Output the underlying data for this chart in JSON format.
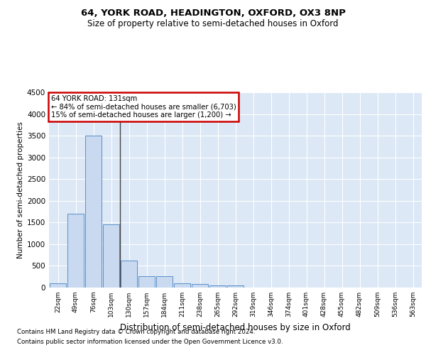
{
  "title1": "64, YORK ROAD, HEADINGTON, OXFORD, OX3 8NP",
  "title2": "Size of property relative to semi-detached houses in Oxford",
  "xlabel": "Distribution of semi-detached houses by size in Oxford",
  "ylabel": "Number of semi-detached properties",
  "footnote1": "Contains HM Land Registry data © Crown copyright and database right 2024.",
  "footnote2": "Contains public sector information licensed under the Open Government Licence v3.0.",
  "categories": [
    "22sqm",
    "49sqm",
    "76sqm",
    "103sqm",
    "130sqm",
    "157sqm",
    "184sqm",
    "211sqm",
    "238sqm",
    "265sqm",
    "292sqm",
    "319sqm",
    "346sqm",
    "374sqm",
    "401sqm",
    "428sqm",
    "455sqm",
    "482sqm",
    "509sqm",
    "536sqm",
    "563sqm"
  ],
  "values": [
    100,
    1700,
    3500,
    1450,
    620,
    270,
    270,
    100,
    80,
    55,
    55,
    0,
    0,
    0,
    0,
    0,
    0,
    0,
    0,
    0,
    0
  ],
  "bar_color": "#c8d9f0",
  "bar_edge_color": "#5b8fc9",
  "highlight_index": 4,
  "highlight_line_color": "#444444",
  "annotation_text_line1": "64 YORK ROAD: 131sqm",
  "annotation_text_line2": "← 84% of semi-detached houses are smaller (6,703)",
  "annotation_text_line3": "15% of semi-detached houses are larger (1,200) →",
  "annotation_box_color": "#cc0000",
  "ylim": [
    0,
    4500
  ],
  "yticks": [
    0,
    500,
    1000,
    1500,
    2000,
    2500,
    3000,
    3500,
    4000,
    4500
  ],
  "grid_color": "#ffffff",
  "bg_color": "#dce8f5",
  "fig_bg_color": "#ffffff"
}
